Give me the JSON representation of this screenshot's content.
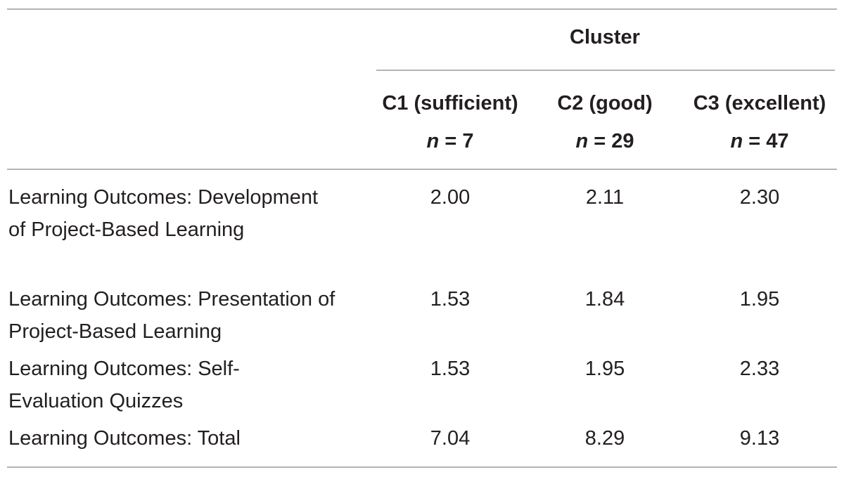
{
  "table": {
    "group_header": "Cluster",
    "columns": [
      {
        "label": "C1 (sufficient)",
        "n_symbol": "n",
        "n_value": "= 7"
      },
      {
        "label": "C2 (good)",
        "n_symbol": "n",
        "n_value": "= 29"
      },
      {
        "label": "C3 (excellent)",
        "n_symbol": "n",
        "n_value": "= 47"
      }
    ],
    "rows": [
      {
        "label": "Learning Outcomes: Development of Project-Based Learning",
        "values": [
          "2.00",
          "2.11",
          "2.30"
        ]
      },
      {
        "label": "Learning Outcomes: Presentation of Project-Based Learning",
        "values": [
          "1.53",
          "1.84",
          "1.95"
        ]
      },
      {
        "label": "Learning Outcomes: Self-Evaluation Quizzes",
        "values": [
          "1.53",
          "1.95",
          "2.33"
        ]
      },
      {
        "label": "Learning Outcomes: Total",
        "values": [
          "7.04",
          "8.29",
          "9.13"
        ]
      }
    ]
  }
}
